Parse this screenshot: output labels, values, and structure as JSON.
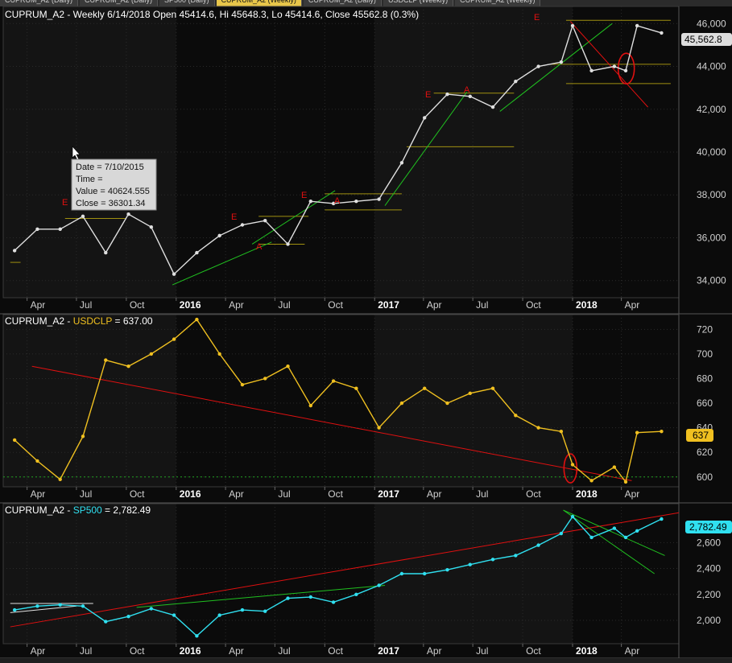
{
  "tabs": [
    {
      "label": "CUPRUM_A2 (Daily)",
      "active": false
    },
    {
      "label": "CUPRUM_A2 (Daily)",
      "active": false
    },
    {
      "label": "SP500 (Daily)",
      "active": false
    },
    {
      "label": "CUPRUM_A2 (Weekly)",
      "active": true
    },
    {
      "label": "CUPRUM_A2 (Daily)",
      "active": false
    },
    {
      "label": "USDCLP (Weekly)",
      "active": false
    },
    {
      "label": "CUPRUM_A2 (Weekly)",
      "active": false
    }
  ],
  "colors": {
    "price": "#e0e0e0",
    "usdclp": "#f0c020",
    "sp500": "#30e0f0",
    "support": "#a09010",
    "trend_up": "#20c020",
    "trend_down": "#e01010",
    "background": "#0b0b0b",
    "grid": "#333333"
  },
  "panel1": {
    "title": "CUPRUM_A2 - Weekly 6/14/2018 Open 45414.6, Hi 45648.3, Lo 45414.6, Close 45562.8 (0.3%)",
    "last_label": "45,562.8",
    "tooltip": {
      "date": "Date = 7/10/2015",
      "time": "Time =",
      "value": "Value = 40624.555",
      "close": "Close = 36301.34"
    },
    "markers": [
      "E",
      "E",
      "A",
      "E",
      "A",
      "E",
      "A",
      "E"
    ]
  },
  "panel2": {
    "title_prefix": "CUPRUM_A2 - ",
    "title_series": "USDCLP",
    "title_suffix": " = 637.00",
    "last_label": "637"
  },
  "panel3": {
    "title_prefix": "CUPRUM_A2 - ",
    "title_series": "SP500",
    "title_suffix": " = 2,782.49",
    "last_label": "2,782.49"
  },
  "x_ticks": [
    {
      "label": "Apr",
      "bold": false
    },
    {
      "label": "Jul",
      "bold": false
    },
    {
      "label": "Oct",
      "bold": false
    },
    {
      "label": "2016",
      "bold": true
    },
    {
      "label": "Apr",
      "bold": false
    },
    {
      "label": "Jul",
      "bold": false
    },
    {
      "label": "Oct",
      "bold": false
    },
    {
      "label": "2017",
      "bold": true
    },
    {
      "label": "Apr",
      "bold": false
    },
    {
      "label": "Jul",
      "bold": false
    },
    {
      "label": "Oct",
      "bold": false
    },
    {
      "label": "2018",
      "bold": true
    },
    {
      "label": "Apr",
      "bold": false
    }
  ],
  "chart_data": [
    {
      "type": "line",
      "title": "CUPRUM_A2 - Weekly 6/14/2018 Open 45414.6, Hi 45648.3, Lo 45414.6, Close 45562.8 (0.3%)",
      "ylim": [
        33200,
        46800
      ],
      "y_ticks": [
        34000,
        36000,
        38000,
        40000,
        42000,
        44000,
        46000
      ],
      "y_tick_labels": [
        "34,000",
        "36,000",
        "38,000",
        "40,000",
        "42,000",
        "44,000",
        "46,000"
      ],
      "grid": true,
      "x": [
        "2015-03-09",
        "2015-04-20",
        "2015-06-01",
        "2015-07-13",
        "2015-08-24",
        "2015-10-05",
        "2015-11-16",
        "2015-12-28",
        "2016-02-08",
        "2016-03-21",
        "2016-05-02",
        "2016-06-13",
        "2016-07-25",
        "2016-09-05",
        "2016-10-17",
        "2016-11-28",
        "2017-01-09",
        "2017-02-20",
        "2017-04-03",
        "2017-05-15",
        "2017-06-26",
        "2017-08-07",
        "2017-09-18",
        "2017-10-30",
        "2017-12-11",
        "2018-01-01",
        "2018-02-05",
        "2018-03-19",
        "2018-04-09",
        "2018-04-30",
        "2018-06-14"
      ],
      "series": [
        {
          "values": [
            35400,
            36400,
            36400,
            37000,
            35300,
            37100,
            36500,
            34300,
            35300,
            36100,
            36600,
            36800,
            35700,
            37700,
            37600,
            37700,
            37800,
            39500,
            41600,
            42700,
            42600,
            42100,
            43300,
            44000,
            44200,
            45900,
            43800,
            44000,
            43800,
            45900,
            45563
          ]
        }
      ]
    },
    {
      "type": "line",
      "ylim": [
        592,
        732
      ],
      "y_ticks": [
        600,
        620,
        640,
        660,
        680,
        700,
        720
      ],
      "y_tick_labels": [
        "600",
        "620",
        "640",
        "660",
        "680",
        "700",
        "720"
      ],
      "grid": true,
      "x": [
        "2015-03-09",
        "2015-04-20",
        "2015-06-01",
        "2015-07-13",
        "2015-08-24",
        "2015-10-05",
        "2015-11-16",
        "2015-12-28",
        "2016-02-08",
        "2016-03-21",
        "2016-05-02",
        "2016-06-13",
        "2016-07-25",
        "2016-09-05",
        "2016-10-17",
        "2016-11-28",
        "2017-01-09",
        "2017-02-20",
        "2017-04-03",
        "2017-05-15",
        "2017-06-26",
        "2017-08-07",
        "2017-09-18",
        "2017-10-30",
        "2017-12-11",
        "2018-01-01",
        "2018-02-05",
        "2018-03-19",
        "2018-04-09",
        "2018-04-30",
        "2018-06-14"
      ],
      "series": [
        {
          "name": "USDCLP",
          "values": [
            630,
            613,
            598,
            633,
            695,
            690,
            700,
            712,
            728,
            700,
            675,
            680,
            690,
            658,
            678,
            672,
            640,
            660,
            672,
            660,
            668,
            672,
            650,
            640,
            637,
            610,
            597,
            608,
            596,
            636,
            637
          ]
        }
      ]
    },
    {
      "type": "line",
      "ylim": [
        1820,
        2900
      ],
      "y_ticks": [
        2000,
        2200,
        2400,
        2600
      ],
      "y_tick_labels": [
        "2,000",
        "2,200",
        "2,400",
        "2,600"
      ],
      "grid": true,
      "x": [
        "2015-03-09",
        "2015-04-20",
        "2015-06-01",
        "2015-07-13",
        "2015-08-24",
        "2015-10-05",
        "2015-11-16",
        "2015-12-28",
        "2016-02-08",
        "2016-03-21",
        "2016-05-02",
        "2016-06-13",
        "2016-07-25",
        "2016-09-05",
        "2016-10-17",
        "2016-11-28",
        "2017-01-09",
        "2017-02-20",
        "2017-04-03",
        "2017-05-15",
        "2017-06-26",
        "2017-08-07",
        "2017-09-18",
        "2017-10-30",
        "2017-12-11",
        "2018-01-01",
        "2018-02-05",
        "2018-03-19",
        "2018-04-09",
        "2018-04-30",
        "2018-06-14"
      ],
      "series": [
        {
          "name": "SP500",
          "values": [
            2080,
            2110,
            2120,
            2110,
            1990,
            2030,
            2090,
            2040,
            1880,
            2040,
            2080,
            2070,
            2170,
            2180,
            2140,
            2200,
            2270,
            2360,
            2360,
            2390,
            2430,
            2470,
            2500,
            2580,
            2670,
            2800,
            2640,
            2710,
            2640,
            2690,
            2782
          ]
        }
      ]
    }
  ]
}
